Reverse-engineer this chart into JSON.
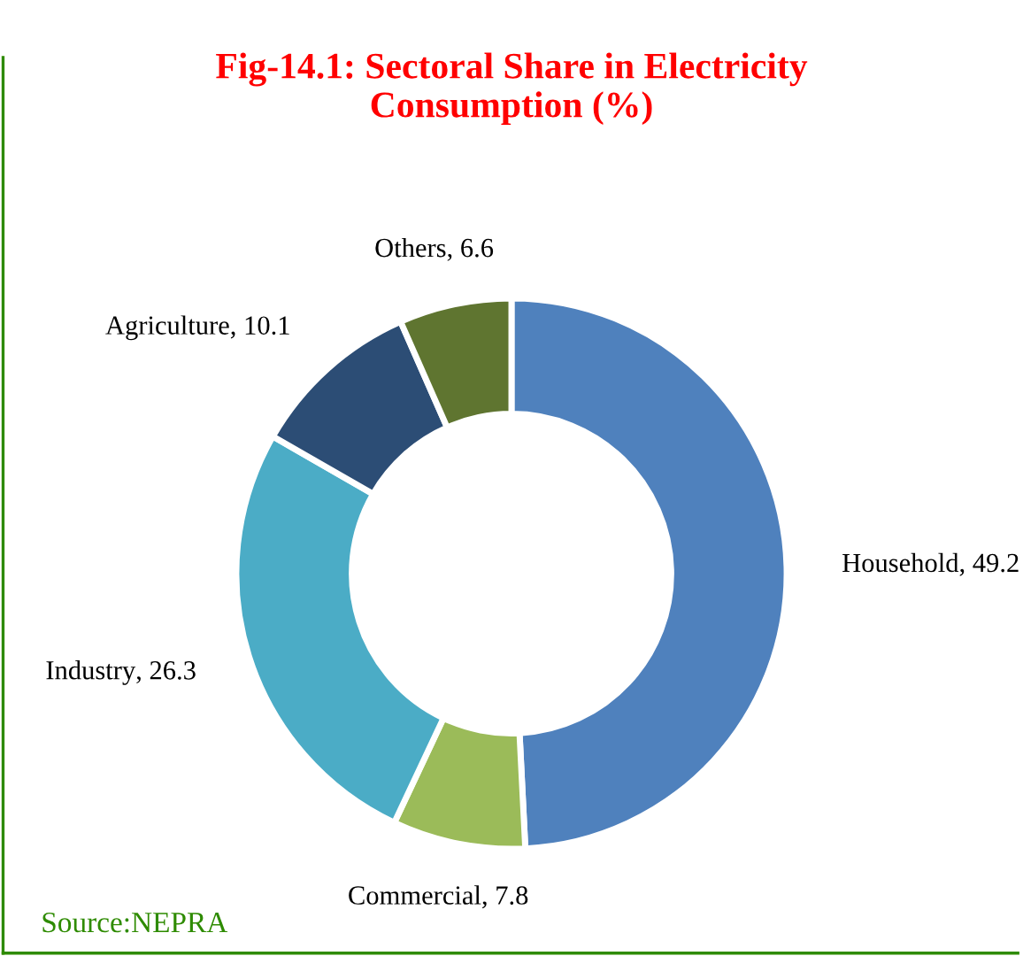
{
  "chart_data": {
    "type": "donut",
    "title": "Fig-14.1: Sectoral Share in Electricity\nConsumption (%)",
    "categories": [
      "Household",
      "Commercial",
      "Industry",
      "Agriculture",
      "Others"
    ],
    "values": [
      49.2,
      7.8,
      26.3,
      10.1,
      6.6
    ],
    "colors": [
      "#4f81bd",
      "#9bbb59",
      "#4bacc6",
      "#2c4d75",
      "#5f7530"
    ],
    "value_labels": [
      ", 49.2",
      ", 7.8",
      ", 26.3",
      ", 10.1",
      ", 6.6"
    ],
    "legend": false,
    "annotations": [
      "Source:NEPRA"
    ]
  }
}
